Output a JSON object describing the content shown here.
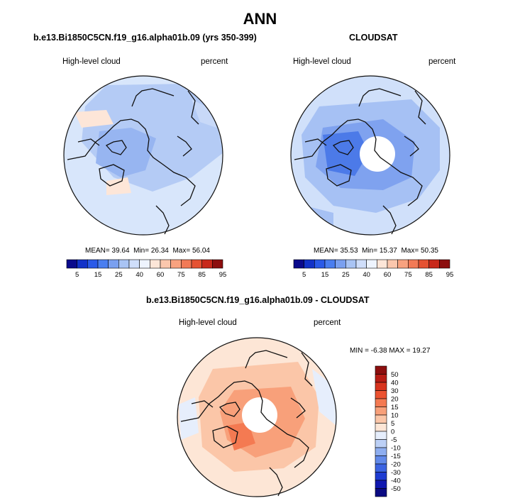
{
  "page": {
    "main_title": "ANN"
  },
  "chart_data": [
    {
      "type": "map",
      "projection": "polar-stereographic-north",
      "title": "b.e13.Bi1850C5CN.f19_g16.alpha01b.09 (yrs 350-399)",
      "variable": "High-level cloud",
      "units": "percent",
      "stats": {
        "mean_label": "MEAN=",
        "mean": "39.64",
        "min_label": "Min=",
        "min": "26.34",
        "max_label": "Max=",
        "max": "56.04"
      },
      "colorbar": {
        "orientation": "horizontal",
        "levels": [
          "5",
          "15",
          "25",
          "40",
          "60",
          "75",
          "85",
          "95"
        ],
        "colors": [
          "#0a0a8c",
          "#1232c8",
          "#2a5ae8",
          "#4a7ef0",
          "#7aa0f0",
          "#a9c4f4",
          "#cfdefa",
          "#eef4fe",
          "#fde6d8",
          "#fbc7ad",
          "#f8a27f",
          "#f27a56",
          "#e55232",
          "#c8281a",
          "#8c0e0e"
        ]
      }
    },
    {
      "type": "map",
      "projection": "polar-stereographic-north",
      "title": "CLOUDSAT",
      "variable": "High-level cloud",
      "units": "percent",
      "stats": {
        "mean_label": "MEAN=",
        "mean": "35.53",
        "min_label": "Min=",
        "min": "15.37",
        "max_label": "Max=",
        "max": "50.35"
      },
      "colorbar": {
        "orientation": "horizontal",
        "levels": [
          "5",
          "15",
          "25",
          "40",
          "60",
          "75",
          "85",
          "95"
        ],
        "colors": [
          "#0a0a8c",
          "#1232c8",
          "#2a5ae8",
          "#4a7ef0",
          "#7aa0f0",
          "#a9c4f4",
          "#cfdefa",
          "#eef4fe",
          "#fde6d8",
          "#fbc7ad",
          "#f8a27f",
          "#f27a56",
          "#e55232",
          "#c8281a",
          "#8c0e0e"
        ]
      }
    },
    {
      "type": "map",
      "projection": "polar-stereographic-north",
      "title": "b.e13.Bi1850C5CN.f19_g16.alpha01b.09 - CLOUDSAT",
      "variable": "High-level cloud",
      "units": "percent",
      "stats": {
        "min_label": "MIN =",
        "min": "-6.38",
        "max_label": "MAX =",
        "max": "19.27"
      },
      "colorbar": {
        "orientation": "vertical",
        "levels": [
          "50",
          "40",
          "30",
          "20",
          "15",
          "10",
          "5",
          "0",
          "-5",
          "-10",
          "-15",
          "-20",
          "-30",
          "-40",
          "-50"
        ],
        "colors": [
          "#8c0e0e",
          "#b81c14",
          "#d8341e",
          "#ec5230",
          "#f47a52",
          "#f8a07a",
          "#fbc6a8",
          "#fde6d6",
          "#e6eefc",
          "#bcd0f6",
          "#8eaef0",
          "#628aea",
          "#3c64e2",
          "#1e3cd2",
          "#1018b0",
          "#0a0a82"
        ]
      }
    }
  ]
}
